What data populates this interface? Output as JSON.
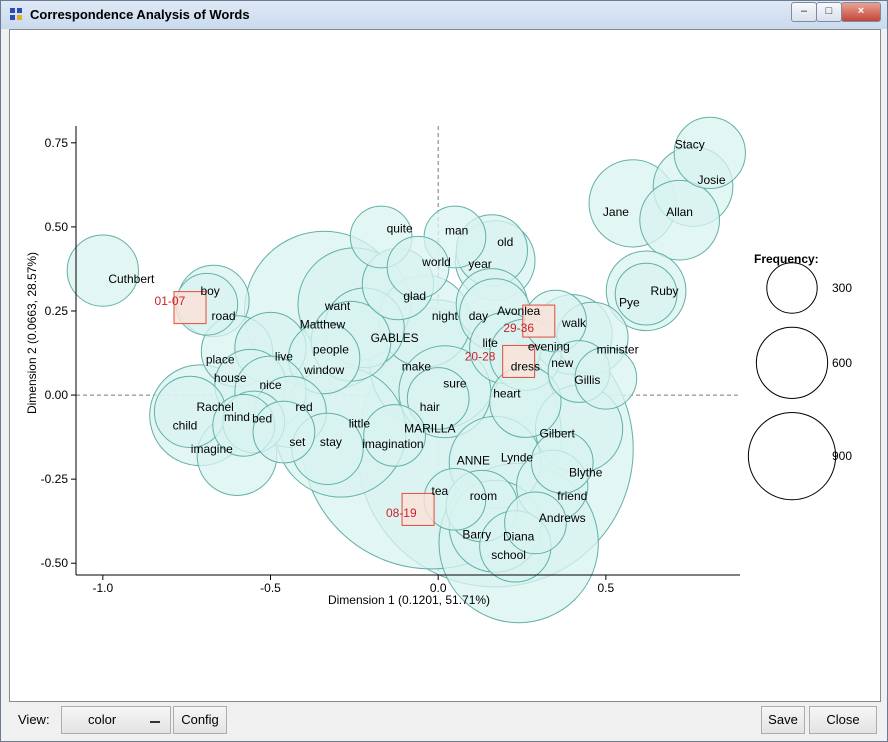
{
  "window": {
    "title": "Correspondence Analysis of Words"
  },
  "colors": {
    "bubble_fill": "#d8f3f0",
    "bubble_stroke": "#62b0a8",
    "square_fill": "#fbe1d7",
    "square_stroke": "#e24b3b",
    "section_label": "#cf1e2a"
  },
  "toolbar": {
    "view_label": "View:",
    "view_value": "color",
    "config_label": "Config",
    "save_label": "Save",
    "close_label": "Close"
  },
  "chart_data": {
    "type": "scatter",
    "xlabel": "Dimension 1  (0.1201,  51.71%)",
    "ylabel": "Dimension 2  (0.0663,  28.57%)",
    "xlim": [
      -1.08,
      0.9
    ],
    "ylim": [
      -0.535,
      0.8
    ],
    "xticks": [
      {
        "v": -1.0,
        "label": "-1.0"
      },
      {
        "v": -0.5,
        "label": "-0.5"
      },
      {
        "v": 0.0,
        "label": "0.0"
      },
      {
        "v": 0.5,
        "label": "0.5"
      }
    ],
    "yticks": [
      {
        "v": -0.5,
        "label": "-0.50"
      },
      {
        "v": -0.25,
        "label": "-0.25"
      },
      {
        "v": 0.0,
        "label": "0.00"
      },
      {
        "v": 0.25,
        "label": "0.25"
      },
      {
        "v": 0.5,
        "label": "0.50"
      },
      {
        "v": 0.75,
        "label": "0.75"
      }
    ],
    "reference_lines": "dashed lines at x=0 and y=0",
    "words": [
      {
        "label": "Stacy",
        "x": 0.81,
        "y": 0.72,
        "freq": 60,
        "lx": 0.75,
        "ly": 0.745
      },
      {
        "label": "Josie",
        "x": 0.76,
        "y": 0.62,
        "freq": 75,
        "lx": 0.815,
        "ly": 0.64
      },
      {
        "label": "Jane",
        "x": 0.58,
        "y": 0.57,
        "freq": 90,
        "lx": 0.53,
        "ly": 0.545
      },
      {
        "label": "Allan",
        "x": 0.72,
        "y": 0.52,
        "freq": 75,
        "lx": 0.72,
        "ly": 0.545
      },
      {
        "label": "Ruby",
        "x": 0.62,
        "y": 0.31,
        "freq": 75,
        "lx": 0.675,
        "ly": 0.31
      },
      {
        "label": "Pye",
        "x": 0.62,
        "y": 0.3,
        "freq": 45,
        "lx": 0.57,
        "ly": 0.275
      },
      {
        "label": "Cuthbert",
        "x": -1.0,
        "y": 0.37,
        "freq": 60,
        "lx": -0.915,
        "ly": 0.345
      },
      {
        "label": "boy",
        "x": -0.67,
        "y": 0.28,
        "freq": 60,
        "lx": -0.68,
        "ly": 0.31
      },
      {
        "label": "road",
        "x": -0.69,
        "y": 0.27,
        "freq": 45,
        "lx": -0.64,
        "ly": 0.235
      },
      {
        "label": "quite",
        "x": -0.17,
        "y": 0.47,
        "freq": 45,
        "lx": -0.115,
        "ly": 0.495
      },
      {
        "label": "man",
        "x": 0.05,
        "y": 0.47,
        "freq": 45,
        "lx": 0.055,
        "ly": 0.49
      },
      {
        "label": "old",
        "x": 0.16,
        "y": 0.43,
        "freq": 60,
        "lx": 0.2,
        "ly": 0.455
      },
      {
        "label": "world",
        "x": -0.06,
        "y": 0.38,
        "freq": 45,
        "lx": -0.005,
        "ly": 0.395
      },
      {
        "label": "year",
        "x": 0.17,
        "y": 0.4,
        "freq": 75,
        "lx": 0.125,
        "ly": 0.39
      },
      {
        "label": "glad",
        "x": -0.12,
        "y": 0.33,
        "freq": 60,
        "lx": -0.07,
        "ly": 0.295
      },
      {
        "label": "want",
        "x": -0.25,
        "y": 0.27,
        "freq": 150,
        "lx": -0.3,
        "ly": 0.265
      },
      {
        "label": "Matthew",
        "x": -0.34,
        "y": 0.25,
        "freq": 300,
        "lx": -0.345,
        "ly": 0.21
      },
      {
        "label": "night",
        "x": -0.04,
        "y": 0.22,
        "freq": 100,
        "lx": 0.02,
        "ly": 0.235
      },
      {
        "label": "day",
        "x": 0.16,
        "y": 0.27,
        "freq": 60,
        "lx": 0.12,
        "ly": 0.235
      },
      {
        "label": "Avonlea",
        "x": 0.17,
        "y": 0.24,
        "freq": 60,
        "lx": 0.24,
        "ly": 0.25
      },
      {
        "label": "walk",
        "x": 0.35,
        "y": 0.22,
        "freq": 45,
        "lx": 0.405,
        "ly": 0.215
      },
      {
        "label": "GABLES",
        "x": -0.22,
        "y": 0.2,
        "freq": 75,
        "lx": -0.13,
        "ly": 0.17
      },
      {
        "label": "people",
        "x": -0.26,
        "y": 0.16,
        "freq": 75,
        "lx": -0.32,
        "ly": 0.135
      },
      {
        "label": "evening",
        "x": 0.4,
        "y": 0.18,
        "freq": 75,
        "lx": 0.33,
        "ly": 0.145
      },
      {
        "label": "minister",
        "x": 0.46,
        "y": 0.17,
        "freq": 60,
        "lx": 0.535,
        "ly": 0.135
      },
      {
        "label": "life",
        "x": 0.2,
        "y": 0.14,
        "freq": 60,
        "lx": 0.155,
        "ly": 0.155
      },
      {
        "label": "dress",
        "x": 0.26,
        "y": 0.12,
        "freq": 60,
        "lx": 0.26,
        "ly": 0.085
      },
      {
        "label": "place",
        "x": -0.6,
        "y": 0.13,
        "freq": 60,
        "lx": -0.65,
        "ly": 0.105
      },
      {
        "label": "live",
        "x": -0.5,
        "y": 0.14,
        "freq": 60,
        "lx": -0.46,
        "ly": 0.115
      },
      {
        "label": "window",
        "x": -0.34,
        "y": 0.11,
        "freq": 60,
        "lx": -0.34,
        "ly": 0.075
      },
      {
        "label": "make",
        "x": -0.01,
        "y": 0.09,
        "freq": 200,
        "lx": -0.065,
        "ly": 0.085
      },
      {
        "label": "new",
        "x": 0.42,
        "y": 0.07,
        "freq": 45,
        "lx": 0.37,
        "ly": 0.095
      },
      {
        "label": "Gillis",
        "x": 0.5,
        "y": 0.05,
        "freq": 45,
        "lx": 0.445,
        "ly": 0.045
      },
      {
        "label": "house",
        "x": -0.56,
        "y": 0.03,
        "freq": 60,
        "lx": -0.62,
        "ly": 0.05
      },
      {
        "label": "nice",
        "x": -0.5,
        "y": 0.01,
        "freq": 60,
        "lx": -0.5,
        "ly": 0.03
      },
      {
        "label": "sure",
        "x": 0.02,
        "y": 0.01,
        "freq": 100,
        "lx": 0.05,
        "ly": 0.035
      },
      {
        "label": "heart",
        "x": 0.26,
        "y": -0.02,
        "freq": 60,
        "lx": 0.205,
        "ly": 0.005
      },
      {
        "label": "hair",
        "x": 0.0,
        "y": -0.01,
        "freq": 45,
        "lx": -0.025,
        "ly": -0.035
      },
      {
        "label": "Rachel",
        "x": -0.74,
        "y": -0.05,
        "freq": 60,
        "lx": -0.665,
        "ly": -0.035
      },
      {
        "label": "mind",
        "x": -0.71,
        "y": -0.06,
        "freq": 120,
        "lx": -0.6,
        "ly": -0.065
      },
      {
        "label": "bed",
        "x": -0.55,
        "y": -0.08,
        "freq": 45,
        "lx": -0.525,
        "ly": -0.07
      },
      {
        "label": "red",
        "x": -0.44,
        "y": -0.05,
        "freq": 60,
        "lx": -0.4,
        "ly": -0.035
      },
      {
        "label": "child",
        "x": -0.58,
        "y": -0.09,
        "freq": 45,
        "lx": -0.755,
        "ly": -0.09
      },
      {
        "label": "little",
        "x": -0.29,
        "y": -0.11,
        "freq": 200,
        "lx": -0.235,
        "ly": -0.085
      },
      {
        "label": "MARILLA",
        "x": -0.02,
        "y": -0.13,
        "freq": 800,
        "lx": -0.025,
        "ly": -0.1
      },
      {
        "label": "Gilbert",
        "x": 0.42,
        "y": -0.1,
        "freq": 90,
        "lx": 0.355,
        "ly": -0.115
      },
      {
        "label": "set",
        "x": -0.46,
        "y": -0.11,
        "freq": 45,
        "lx": -0.42,
        "ly": -0.14
      },
      {
        "label": "stay",
        "x": -0.33,
        "y": -0.16,
        "freq": 60,
        "lx": -0.32,
        "ly": -0.14
      },
      {
        "label": "imagination",
        "x": -0.13,
        "y": -0.12,
        "freq": 45,
        "lx": -0.135,
        "ly": -0.145
      },
      {
        "label": "imagine",
        "x": -0.6,
        "y": -0.18,
        "freq": 75,
        "lx": -0.675,
        "ly": -0.16
      },
      {
        "label": "ANNE",
        "x": 0.17,
        "y": -0.16,
        "freq": 900,
        "lx": 0.105,
        "ly": -0.195
      },
      {
        "label": "Lynde",
        "x": 0.17,
        "y": -0.2,
        "freq": 100,
        "lx": 0.235,
        "ly": -0.185
      },
      {
        "label": "Blythe",
        "x": 0.37,
        "y": -0.2,
        "freq": 45,
        "lx": 0.44,
        "ly": -0.23
      },
      {
        "label": "tea",
        "x": 0.05,
        "y": -0.31,
        "freq": 45,
        "lx": 0.005,
        "ly": -0.285
      },
      {
        "label": "room",
        "x": 0.13,
        "y": -0.33,
        "freq": 60,
        "lx": 0.135,
        "ly": -0.3
      },
      {
        "label": "friend",
        "x": 0.34,
        "y": -0.27,
        "freq": 60,
        "lx": 0.4,
        "ly": -0.3
      },
      {
        "label": "Andrews",
        "x": 0.29,
        "y": -0.38,
        "freq": 45,
        "lx": 0.37,
        "ly": -0.365
      },
      {
        "label": "Barry",
        "x": 0.17,
        "y": -0.39,
        "freq": 100,
        "lx": 0.115,
        "ly": -0.415
      },
      {
        "label": "Diana",
        "x": 0.24,
        "y": -0.44,
        "freq": 300,
        "lx": 0.24,
        "ly": -0.42
      },
      {
        "label": "school",
        "x": 0.23,
        "y": -0.45,
        "freq": 60,
        "lx": 0.21,
        "ly": -0.475
      }
    ],
    "sections": [
      {
        "label": "01-07",
        "x": -0.74,
        "y": 0.26,
        "lx": -0.8,
        "ly": 0.28
      },
      {
        "label": "29-36",
        "x": 0.3,
        "y": 0.22,
        "lx": 0.24,
        "ly": 0.2
      },
      {
        "label": "20-28",
        "x": 0.24,
        "y": 0.1,
        "lx": 0.125,
        "ly": 0.115
      },
      {
        "label": "08-19",
        "x": -0.06,
        "y": -0.34,
        "lx": -0.11,
        "ly": -0.35
      }
    ],
    "legend": {
      "title": "Frequency:",
      "placement": "right",
      "entries": [
        {
          "value": 300,
          "label": "300"
        },
        {
          "value": 600,
          "label": "600"
        },
        {
          "value": 900,
          "label": "900"
        }
      ]
    }
  }
}
